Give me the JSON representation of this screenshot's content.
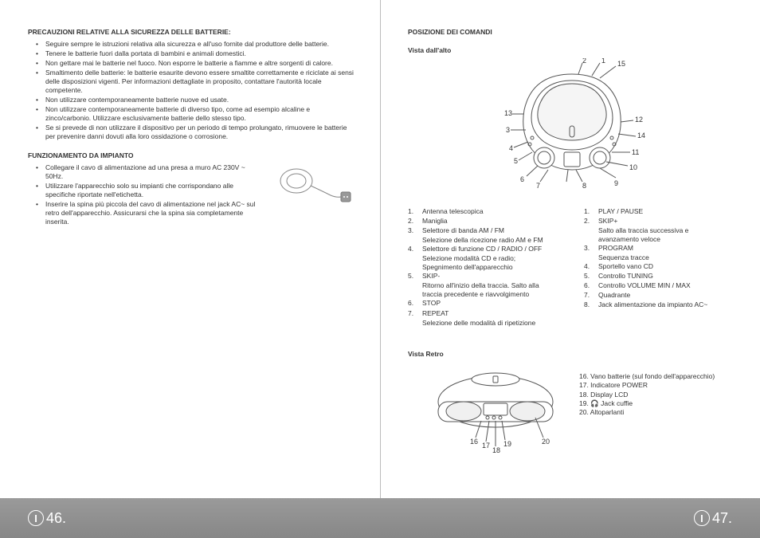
{
  "left": {
    "heading1": "PRECAUZIONI RELATIVE ALLA SICUREZZA DELLE BATTERIE:",
    "bullets1": [
      "Seguire sempre le istruzioni relativa alla sicurezza e all'uso fornite dal produttore delle batterie.",
      "Tenere le batterie fuori dalla portata di bambini e animali domestici.",
      "Non gettare mai le batterie nel fuoco. Non esporre le batterie a fiamme e altre sorgenti di calore.",
      "Smaltimento delle batterie: le batterie esaurite devono essere smaltite correttamente e riciclate ai sensi delle disposizioni vigenti. Per informazioni dettagliate in proposito, contattare l'autorità locale competente.",
      "Non utilizzare contemporaneamente batterie nuove ed usate.",
      "Non utilizzare contemporaneamente batterie di diverso tipo, come ad esempio alcaline e zinco/carbonio. Utilizzare esclusivamente batterie dello stesso tipo.",
      "Se si prevede di non utilizzare il dispositivo per un periodo di tempo prolungato, rimuovere le batterie per prevenire danni dovuti alla loro ossidazione o corrosione."
    ],
    "heading2": "FUNZIONAMENTO DA IMPIANTO",
    "bullets2": [
      "Collegare il cavo di alimentazione ad una presa a muro AC 230V ~ 50Hz.",
      "Utilizzare l'apparecchio solo su impianti che corrispondano alle specifiche riportate nell'etichetta.",
      "Inserire la spina più piccola del cavo di alimentazione nel jack AC~ sul retro dell'apparecchio. Assicurarsi che la spina sia completamente inserita."
    ],
    "pagenum": "46."
  },
  "right": {
    "heading1": "POSIZIONE DEI COMANDI",
    "subheading1": "Vista dall'alto",
    "legend_left": [
      {
        "n": "1.",
        "t": "Antenna telescopica"
      },
      {
        "n": "2.",
        "t": "Maniglia"
      },
      {
        "n": "3.",
        "t": "Selettore di banda AM / FM",
        "s": "Selezione della ricezione radio AM e FM"
      },
      {
        "n": "4.",
        "t": "Selettore di funzione CD / RADIO / OFF",
        "s": "Selezione modalità CD e radio;",
        "s2": "Spegnimento dell'apparecchio"
      },
      {
        "n": "5.",
        "t": "SKIP-",
        "s": "Ritorno all'inizio della traccia. Salto alla",
        "s2": "traccia precedente e riavvolgimento"
      },
      {
        "n": "6.",
        "t": "STOP"
      },
      {
        "n": "7.",
        "t": "REPEAT",
        "s": "Selezione delle modalità di ripetizione"
      }
    ],
    "legend_right": [
      {
        "n": "1.",
        "t": "PLAY / PAUSE"
      },
      {
        "n": "2.",
        "t": "SKIP+",
        "s": "Salto alla traccia successiva e",
        "s2": "avanzamento veloce"
      },
      {
        "n": "3.",
        "t": "PROGRAM",
        "s": "Sequenza tracce"
      },
      {
        "n": "4.",
        "t": "Sportello vano CD"
      },
      {
        "n": "5.",
        "t": "Controllo TUNING"
      },
      {
        "n": "6.",
        "t": "Controllo VOLUME MIN / MAX"
      },
      {
        "n": "7.",
        "t": "Quadrante"
      },
      {
        "n": "8.",
        "t": "Jack alimentazione da impianto AC~"
      }
    ],
    "subheading2": "Vista Retro",
    "rear_legend": [
      "16. Vano batterie (sul fondo dell'apparecchio)",
      "17. Indicatore POWER",
      "18. Display LCD",
      "19. 🎧 Jack cuffie",
      "20. Altoparlanti"
    ],
    "callouts_top": {
      "1": "1",
      "2": "2",
      "3": "3",
      "4": "4",
      "5": "5",
      "6": "6",
      "7": "7",
      "8": "8",
      "9": "9",
      "10": "10",
      "11": "11",
      "12": "12",
      "13": "13",
      "14": "14",
      "15": "15"
    },
    "callouts_rear": {
      "16": "16",
      "17": "17",
      "18": "18",
      "19": "19",
      "20": "20"
    },
    "pagenum": "47."
  },
  "colors": {
    "stroke": "#555",
    "footer_text": "#ffffff"
  }
}
